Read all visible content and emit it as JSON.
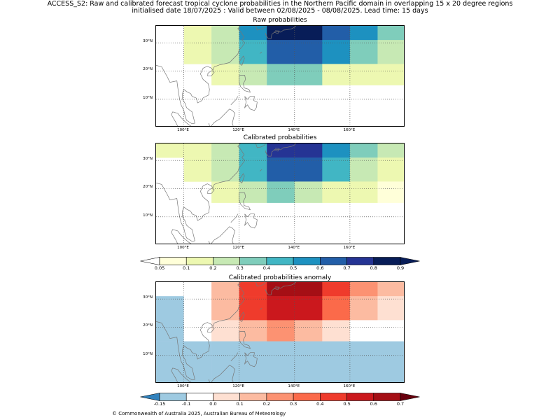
{
  "header": {
    "line1": "ACCESS_S2: Raw and calibrated forecast tropical cyclone probabilities in the Northern Pacific domain in overlapping 15 x 20 degree regions",
    "line2": "initialised date 18/07/2025 :  Valid between 02/08/2025 - 08/08/2025. Lead time: 15 days"
  },
  "axes": {
    "x_ticks": [
      "100°E",
      "120°E",
      "140°E",
      "160°E"
    ],
    "x_values": [
      100,
      120,
      140,
      160
    ],
    "y_ticks": [
      "30°N",
      "20°N",
      "10°N"
    ],
    "y_values": [
      30,
      20,
      10
    ],
    "lon_range": [
      90,
      180
    ],
    "lat_range": [
      0,
      36
    ]
  },
  "grid": {
    "lon_edges": [
      90,
      100,
      110,
      120,
      130,
      140,
      150,
      160,
      170,
      180
    ],
    "lat_edges": [
      36,
      31,
      22.5,
      15,
      0
    ]
  },
  "panels": [
    {
      "title": "Raw probabilities",
      "colorbar": "prob",
      "cells": [
        [
          null,
          0.1,
          0.2,
          0.5,
          0.8,
          0.9,
          0.6,
          0.5,
          0.3
        ],
        [
          null,
          0.1,
          0.2,
          0.4,
          0.6,
          0.6,
          0.5,
          0.3,
          0.2
        ],
        [
          null,
          null,
          0.1,
          0.2,
          0.3,
          0.3,
          0.1,
          0.1,
          0.1
        ],
        [
          null,
          null,
          null,
          null,
          null,
          null,
          null,
          null,
          null
        ]
      ]
    },
    {
      "title": "Calibrated probabilities",
      "colorbar": "prob",
      "cells": [
        [
          0.1,
          0.1,
          0.2,
          0.4,
          0.7,
          0.7,
          0.5,
          0.3,
          0.2
        ],
        [
          null,
          0.1,
          0.2,
          0.4,
          0.6,
          0.6,
          0.4,
          0.2,
          0.1
        ],
        [
          null,
          null,
          0.1,
          0.2,
          0.3,
          0.2,
          0.1,
          0.1,
          0.05
        ],
        [
          null,
          null,
          null,
          null,
          null,
          null,
          null,
          null,
          null
        ]
      ]
    },
    {
      "title": "Calibrated probabilities anomaly",
      "colorbar": "anom",
      "cells": [
        [
          -0.1,
          -0.1,
          0.1,
          0.4,
          0.6,
          0.6,
          0.4,
          0.2,
          0.1
        ],
        [
          -0.15,
          -0.1,
          0.1,
          0.4,
          0.5,
          0.5,
          0.3,
          0.1,
          0.0
        ],
        [
          -0.15,
          -0.1,
          0.0,
          0.1,
          0.2,
          0.1,
          0.0,
          -0.1,
          -0.1
        ],
        [
          -0.15,
          -0.15,
          -0.15,
          -0.15,
          -0.15,
          -0.15,
          -0.15,
          -0.15,
          -0.15
        ]
      ]
    }
  ],
  "colorbars": {
    "prob": {
      "labels": [
        "0.05",
        "0.1",
        "0.2",
        "0.3",
        "0.4",
        "0.5",
        "0.6",
        "0.7",
        "0.8",
        "0.9"
      ],
      "bounds": [
        0.05,
        0.1,
        0.2,
        0.3,
        0.4,
        0.5,
        0.6,
        0.7,
        0.8,
        0.9
      ],
      "under": "#ffffff",
      "over": "#081d58",
      "colors": [
        "#ffffd9",
        "#edf8b1",
        "#c7e9b4",
        "#7fcdbb",
        "#41b6c4",
        "#1d91c0",
        "#225ea8",
        "#253494",
        "#081d58"
      ]
    },
    "anom": {
      "labels": [
        "-0.15",
        "-0.1",
        "0.0",
        "0.1",
        "0.2",
        "0.3",
        "0.4",
        "0.5",
        "0.6",
        "0.7"
      ],
      "bounds": [
        -0.15,
        -0.1,
        0.0,
        0.1,
        0.2,
        0.3,
        0.4,
        0.5,
        0.6,
        0.7
      ],
      "under": "#3182bd",
      "over": "#67000d",
      "colors": [
        "#9ecae1",
        "#ffffff",
        "#fee0d2",
        "#fcbba1",
        "#fc9272",
        "#fb6a4a",
        "#ef3b2c",
        "#cb181d",
        "#a50f15"
      ]
    }
  },
  "footer": "© Commonwealth of Australia 2025, Australian Bureau of Meteorology"
}
